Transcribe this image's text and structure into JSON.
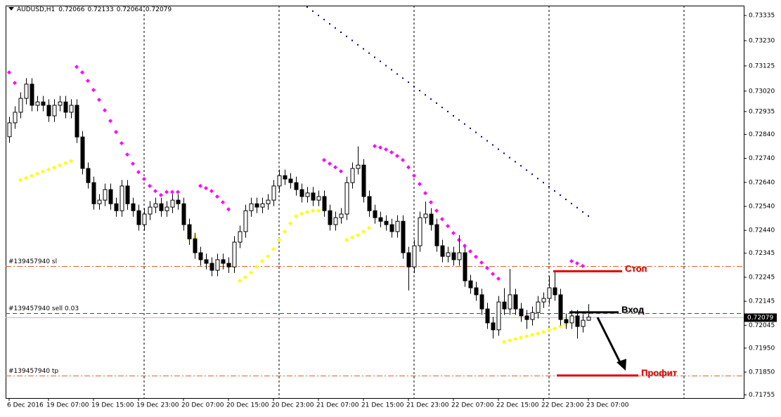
{
  "chart_data": {
    "type": "candlestick",
    "title": "AUDUSD,H1",
    "categories": [
      "6 Dec 2016",
      null,
      null,
      null,
      null,
      null,
      null,
      "19 Dec 07:00",
      null,
      null,
      null,
      null,
      null,
      null,
      null,
      "19 Dec 15:00",
      null,
      null,
      null,
      null,
      null,
      null,
      null,
      "19 Dec 23:00",
      null,
      null,
      null,
      null,
      null,
      null,
      null,
      "20 Dec 07:00",
      null,
      null,
      null,
      null,
      null,
      null,
      null,
      "20 Dec 15:00",
      null,
      null,
      null,
      null,
      null,
      null,
      null,
      "20 Dec 23:00",
      null,
      null,
      null,
      null,
      null,
      null,
      null,
      "21 Dec 07:00",
      null,
      null,
      null,
      null,
      null,
      null,
      null,
      "21 Dec 15:00",
      null,
      null,
      null,
      null,
      null,
      null,
      null,
      "21 Dec 23:00",
      null,
      null,
      null,
      null,
      null,
      null,
      null,
      "22 Dec 07:00",
      null,
      null,
      null,
      null,
      null,
      null,
      null,
      "22 Dec 15:00",
      null,
      null,
      null,
      null,
      null,
      null,
      null,
      "22 Dec 23:00",
      null,
      null,
      null,
      null,
      null,
      null,
      null,
      "23 Dec 07:00"
    ],
    "open": [
      0.7283,
      0.72888,
      0.72932,
      0.7299,
      0.73049,
      0.72961,
      0.72975,
      0.72961,
      0.72917,
      0.72961,
      0.72975,
      0.72932,
      0.72961,
      0.72829,
      0.72698,
      0.72639,
      0.72551,
      0.72566,
      0.7261,
      0.72551,
      0.72522,
      0.72625,
      0.72551,
      0.72522,
      0.72464,
      0.72508,
      0.72537,
      0.72551,
      0.72522,
      0.72537,
      0.72566,
      0.72551,
      0.72464,
      0.72405,
      0.72347,
      0.72318,
      0.72303,
      0.72274,
      0.72318,
      0.72303,
      0.72288,
      0.72391,
      0.72435,
      0.72522,
      0.72551,
      0.72537,
      0.72551,
      0.72566,
      0.72625,
      0.72668,
      0.72654,
      0.72639,
      0.7261,
      0.72581,
      0.72596,
      0.72566,
      0.72581,
      0.72522,
      0.72464,
      0.72493,
      0.72508,
      0.72639,
      0.72698,
      0.72712,
      0.72581,
      0.72522,
      0.72493,
      0.72478,
      0.72464,
      0.72435,
      0.72478,
      0.72347,
      0.72288,
      0.72376,
      0.72493,
      0.72508,
      0.72464,
      0.72376,
      0.72332,
      0.72347,
      0.72318,
      0.72347,
      0.7223,
      0.72201,
      0.72172,
      0.72113,
      0.72055,
      0.72026,
      0.72142,
      0.72113,
      0.72172,
      0.72113,
      0.72084,
      0.72069,
      0.72098,
      0.72142,
      0.72157,
      0.72201,
      0.72172,
      0.72069,
      0.72055,
      0.72084,
      0.7204,
      0.72066
    ],
    "high": [
      0.72913,
      0.72957,
      0.73015,
      0.73074,
      0.73074,
      0.73,
      0.73,
      0.72986,
      0.72986,
      0.73,
      0.73,
      0.72986,
      0.72986,
      0.72854,
      0.72723,
      0.72664,
      0.72591,
      0.72635,
      0.72635,
      0.72576,
      0.7265,
      0.7265,
      0.72576,
      0.72547,
      0.72533,
      0.72562,
      0.72576,
      0.72576,
      0.72562,
      0.72591,
      0.72591,
      0.72576,
      0.72489,
      0.7243,
      0.72372,
      0.72343,
      0.72328,
      0.72343,
      0.72343,
      0.72328,
      0.72416,
      0.7246,
      0.72547,
      0.72576,
      0.72576,
      0.72576,
      0.72591,
      0.7265,
      0.72693,
      0.72693,
      0.72679,
      0.72664,
      0.72635,
      0.72621,
      0.72621,
      0.72606,
      0.72606,
      0.72547,
      0.72518,
      0.72533,
      0.72664,
      0.72723,
      0.7279,
      0.72737,
      0.72606,
      0.72547,
      0.72518,
      0.72503,
      0.72489,
      0.72503,
      0.72503,
      0.72372,
      0.72401,
      0.72518,
      0.7256,
      0.72533,
      0.72489,
      0.72401,
      0.72372,
      0.72372,
      0.7242,
      0.72372,
      0.72255,
      0.72226,
      0.72197,
      0.72138,
      0.7208,
      0.72167,
      0.722,
      0.7228,
      0.72197,
      0.72138,
      0.72109,
      0.72123,
      0.72167,
      0.72182,
      0.7225,
      0.7227,
      0.72197,
      0.72094,
      0.72109,
      0.72109,
      0.72091,
      0.72133
    ],
    "low": [
      0.72805,
      0.72863,
      0.72907,
      0.72965,
      0.72936,
      0.72936,
      0.72936,
      0.72892,
      0.72892,
      0.72936,
      0.72907,
      0.72907,
      0.72804,
      0.72673,
      0.72614,
      0.72526,
      0.72526,
      0.72541,
      0.72526,
      0.72497,
      0.72497,
      0.72526,
      0.72497,
      0.72439,
      0.72439,
      0.72483,
      0.72512,
      0.72497,
      0.72497,
      0.72512,
      0.72526,
      0.72439,
      0.7238,
      0.72322,
      0.72293,
      0.72278,
      0.72249,
      0.72249,
      0.72278,
      0.72263,
      0.72263,
      0.72366,
      0.7241,
      0.72497,
      0.72512,
      0.72512,
      0.72526,
      0.72541,
      0.726,
      0.72629,
      0.72614,
      0.72585,
      0.72556,
      0.72556,
      0.72541,
      0.72541,
      0.72497,
      0.72439,
      0.72439,
      0.72468,
      0.72483,
      0.72614,
      0.72673,
      0.72556,
      0.72497,
      0.72468,
      0.72453,
      0.72439,
      0.7241,
      0.7241,
      0.72322,
      0.7219,
      0.72263,
      0.72351,
      0.72468,
      0.72439,
      0.72351,
      0.72307,
      0.72307,
      0.72293,
      0.72293,
      0.72205,
      0.72176,
      0.72147,
      0.72088,
      0.7203,
      0.7199,
      0.72001,
      0.72088,
      0.72088,
      0.72088,
      0.72059,
      0.7203,
      0.72044,
      0.72073,
      0.72117,
      0.72132,
      0.72147,
      0.72044,
      0.7203,
      0.7203,
      0.7199,
      0.72015,
      0.72064
    ],
    "close": [
      0.72888,
      0.72932,
      0.7299,
      0.73049,
      0.72961,
      0.72975,
      0.72961,
      0.72917,
      0.72961,
      0.72975,
      0.72932,
      0.72961,
      0.72829,
      0.72698,
      0.72639,
      0.72551,
      0.72566,
      0.7261,
      0.72551,
      0.72522,
      0.72625,
      0.72551,
      0.72522,
      0.72464,
      0.72508,
      0.72537,
      0.72551,
      0.72522,
      0.72537,
      0.72566,
      0.72551,
      0.72464,
      0.72405,
      0.72347,
      0.72318,
      0.72303,
      0.72274,
      0.72318,
      0.72303,
      0.72288,
      0.72391,
      0.72435,
      0.72522,
      0.72551,
      0.72537,
      0.72551,
      0.72566,
      0.72625,
      0.72668,
      0.72654,
      0.72639,
      0.7261,
      0.72581,
      0.72596,
      0.72566,
      0.72581,
      0.72522,
      0.72464,
      0.72493,
      0.72508,
      0.72639,
      0.72698,
      0.72712,
      0.72581,
      0.72522,
      0.72493,
      0.72478,
      0.72464,
      0.72435,
      0.72478,
      0.72347,
      0.72288,
      0.72376,
      0.72493,
      0.72508,
      0.72464,
      0.72376,
      0.72332,
      0.72347,
      0.72318,
      0.72347,
      0.7223,
      0.72201,
      0.72172,
      0.72113,
      0.72055,
      0.72026,
      0.72142,
      0.72113,
      0.72172,
      0.72113,
      0.72084,
      0.72069,
      0.72098,
      0.72142,
      0.72157,
      0.72201,
      0.72172,
      0.72069,
      0.72055,
      0.72084,
      0.7204,
      0.72066,
      0.72079
    ],
    "ylim": [
      0.71742,
      0.73376
    ],
    "yticks": [
      0.73335,
      {
        "value": 0.7323,
        "label": "0.73230"
      },
      0.73125,
      {
        "value": 0.7302,
        "label": "0.73020"
      },
      0.72935,
      {
        "value": 0.7284,
        "label": "0.72840"
      },
      {
        "value": 0.7274,
        "label": "0.72740"
      },
      {
        "value": 0.7264,
        "label": "0.72640"
      },
      {
        "value": 0.7254,
        "label": "0.72540"
      },
      {
        "value": 0.7244,
        "label": "0.72440"
      },
      0.72345,
      0.72245,
      0.72145,
      0.72045,
      {
        "value": 0.7195,
        "label": "0.71950"
      },
      {
        "value": 0.7185,
        "label": "0.71850"
      },
      0.71755
    ],
    "indicators": [
      {
        "color": "#ff00ff",
        "values": [
          0.73098,
          0.73054,
          null,
          null,
          null,
          null,
          null,
          null,
          null,
          null,
          null,
          null,
          0.73121,
          0.73098,
          0.73063,
          0.73025,
          0.72984,
          0.7294,
          0.72896,
          0.7285,
          0.72803,
          0.72756,
          0.72718,
          0.72683,
          0.72654,
          0.72625,
          0.72604,
          0.72587,
          0.726,
          0.726,
          0.726,
          null,
          null,
          null,
          0.72625,
          0.72616,
          0.72604,
          0.72581,
          0.72557,
          0.72528,
          null,
          null,
          null,
          null,
          null,
          null,
          null,
          null,
          null,
          null,
          null,
          null,
          null,
          null,
          null,
          null,
          0.72733,
          0.72718,
          0.72703,
          0.72686,
          null,
          null,
          null,
          null,
          null,
          0.72791,
          0.72785,
          0.72777,
          0.72765,
          0.7275,
          0.72733,
          0.72703,
          0.72668,
          0.72633,
          0.72595,
          0.72557,
          0.72522,
          0.72487,
          0.72458,
          0.72429,
          0.724,
          0.72376,
          0.72353,
          0.7233,
          0.72306,
          0.72283,
          0.72259,
          0.72239,
          null,
          null,
          null,
          null,
          null,
          null,
          null,
          null,
          null,
          null,
          null,
          null,
          0.72312,
          0.72303,
          0.72292,
          null
        ]
      },
      {
        "color": "#ffff00",
        "values": [
          null,
          null,
          0.7265,
          0.72658,
          0.72667,
          0.72676,
          0.72685,
          0.72694,
          0.72702,
          0.72711,
          0.7272,
          0.72729,
          null,
          null,
          null,
          null,
          null,
          null,
          null,
          null,
          null,
          null,
          null,
          null,
          null,
          null,
          null,
          null,
          null,
          null,
          null,
          null,
          0.72405,
          0.72411,
          null,
          null,
          null,
          null,
          null,
          null,
          null,
          0.7223,
          0.72245,
          0.72265,
          0.72289,
          0.72312,
          0.72332,
          0.72362,
          0.724,
          0.72435,
          0.7247,
          0.72499,
          0.7251,
          0.72516,
          0.72522,
          0.72522,
          null,
          null,
          null,
          null,
          0.724,
          0.72411,
          0.7242,
          0.72435,
          0.7245,
          null,
          null,
          null,
          null,
          null,
          null,
          null,
          null,
          null,
          null,
          null,
          null,
          null,
          null,
          null,
          null,
          null,
          null,
          null,
          null,
          null,
          null,
          null,
          0.71976,
          0.71982,
          0.71988,
          0.71994,
          0.71999,
          0.72005,
          0.72011,
          0.72017,
          0.72026,
          0.72031,
          0.7204,
          0.72049,
          null,
          null,
          null,
          null
        ]
      },
      {
        "color": "#000080",
        "values": [
          null,
          null,
          null,
          null,
          null,
          null,
          null,
          null,
          null,
          null,
          null,
          null,
          null,
          null,
          null,
          null,
          null,
          null,
          null,
          null,
          null,
          null,
          null,
          null,
          null,
          null,
          null,
          null,
          null,
          null,
          null,
          null,
          null,
          null,
          null,
          null,
          null,
          null,
          null,
          null,
          null,
          null,
          null,
          null,
          null,
          null,
          null,
          null,
          null,
          null,
          null,
          null,
          null,
          0.7337,
          0.73353,
          0.73335,
          0.73318,
          0.733,
          0.73283,
          0.73265,
          0.73248,
          0.73231,
          0.73213,
          0.73196,
          0.73178,
          0.73161,
          0.73144,
          0.73126,
          0.73109,
          0.73091,
          0.73074,
          0.73057,
          0.73039,
          0.73022,
          0.73004,
          0.72987,
          0.7297,
          0.72952,
          0.72935,
          0.72917,
          0.729,
          0.72883,
          0.72865,
          0.72848,
          0.7283,
          0.72813,
          0.72796,
          0.72778,
          0.72761,
          0.72743,
          0.72726,
          0.72709,
          0.72691,
          0.72674,
          0.72656,
          0.72639,
          0.72622,
          0.72604,
          0.72587,
          0.72569,
          0.72552,
          0.72535,
          0.72517,
          0.725
        ]
      }
    ],
    "levels": [
      {
        "label": "#139457940 sl",
        "value": 0.72292,
        "color": "#e0602a"
      },
      {
        "label": "#139457940 sell 0.03",
        "value": 0.72096,
        "color": "#008000"
      },
      {
        "label": "#139457940 tp",
        "value": 0.71836,
        "color": "#e0602a"
      }
    ],
    "annotations": [
      {
        "text": "Стоп",
        "value": 0.7227,
        "color": "#e00000"
      },
      {
        "text": "Вход",
        "value": 0.72099,
        "color": "#000000"
      },
      {
        "text": "Профит",
        "value": 0.71836,
        "color": "#e00000"
      }
    ]
  }
}
